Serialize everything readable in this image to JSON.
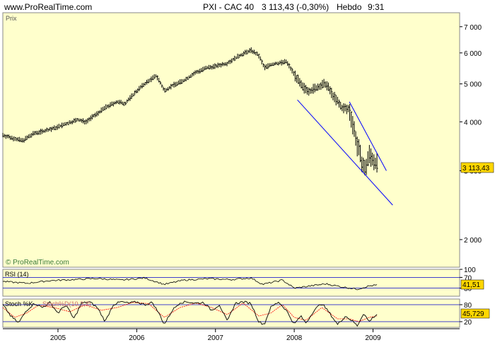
{
  "header": {
    "site": "www.ProRealTime.com",
    "instrument": "PXI - CAC 40",
    "quote": "3 113,43 (-0,30%)",
    "period": "Hebdo",
    "time": "9:31"
  },
  "watermark": "© ProRealTime.com",
  "chart_data": [
    {
      "type": "ohlc",
      "title": "Prix",
      "scale": "log",
      "ylim": [
        1700,
        7600
      ],
      "y_ticks": [
        "7 000",
        "6 000",
        "5 000",
        "4 000",
        "3 000",
        "2 000"
      ],
      "y_tick_values": [
        7000,
        6000,
        5000,
        4000,
        3000,
        2000
      ],
      "last_value_label": "3 113,43",
      "last_value": 3113.43,
      "x_ticks": [
        "2005",
        "2006",
        "2007",
        "2008",
        "2009"
      ],
      "x_tick_values": [
        2005,
        2006,
        2007,
        2008,
        2009
      ],
      "xlim": [
        2004.3,
        2010.1
      ],
      "series_points": [
        [
          2004.3,
          3700
        ],
        [
          2004.45,
          3620
        ],
        [
          2004.55,
          3580
        ],
        [
          2004.7,
          3740
        ],
        [
          2004.8,
          3780
        ],
        [
          2004.95,
          3850
        ],
        [
          2005.1,
          3950
        ],
        [
          2005.25,
          4050
        ],
        [
          2005.35,
          4000
        ],
        [
          2005.5,
          4200
        ],
        [
          2005.6,
          4350
        ],
        [
          2005.75,
          4500
        ],
        [
          2005.85,
          4450
        ],
        [
          2006.0,
          4800
        ],
        [
          2006.1,
          5000
        ],
        [
          2006.25,
          5250
        ],
        [
          2006.35,
          4800
        ],
        [
          2006.45,
          4950
        ],
        [
          2006.6,
          5100
        ],
        [
          2006.75,
          5350
        ],
        [
          2006.9,
          5500
        ],
        [
          2007.0,
          5550
        ],
        [
          2007.15,
          5650
        ],
        [
          2007.3,
          5900
        ],
        [
          2007.45,
          6100
        ],
        [
          2007.55,
          5900
        ],
        [
          2007.62,
          5500
        ],
        [
          2007.7,
          5600
        ],
        [
          2007.8,
          5650
        ],
        [
          2007.9,
          5700
        ],
        [
          2008.0,
          5300
        ],
        [
          2008.1,
          4900
        ],
        [
          2008.2,
          4800
        ],
        [
          2008.3,
          4900
        ],
        [
          2008.4,
          5000
        ],
        [
          2008.5,
          4650
        ],
        [
          2008.6,
          4350
        ],
        [
          2008.7,
          4300
        ],
        [
          2008.75,
          3900
        ],
        [
          2008.8,
          3500
        ],
        [
          2008.85,
          3200
        ],
        [
          2008.9,
          3000
        ],
        [
          2008.95,
          3300
        ],
        [
          2009.0,
          3200
        ],
        [
          2009.05,
          3113
        ]
      ],
      "trendlines": [
        {
          "from": [
            2008.04,
            4550
          ],
          "to": [
            2009.25,
            2450
          ]
        },
        {
          "from": [
            2008.7,
            4500
          ],
          "to": [
            2009.17,
            3000
          ]
        }
      ]
    },
    {
      "type": "line",
      "title": "RSI (14)",
      "ylim": [
        0,
        100
      ],
      "y_ticks": [
        "100",
        "70",
        "30"
      ],
      "y_tick_values": [
        100,
        70,
        30
      ],
      "last_value_label": "41,51",
      "last_value": 41.51,
      "series_points": [
        [
          2004.3,
          55
        ],
        [
          2004.6,
          48
        ],
        [
          2004.9,
          58
        ],
        [
          2005.2,
          62
        ],
        [
          2005.5,
          66
        ],
        [
          2005.8,
          60
        ],
        [
          2006.1,
          68
        ],
        [
          2006.35,
          44
        ],
        [
          2006.6,
          60
        ],
        [
          2006.9,
          65
        ],
        [
          2007.2,
          62
        ],
        [
          2007.45,
          68
        ],
        [
          2007.6,
          44
        ],
        [
          2007.85,
          60
        ],
        [
          2008.0,
          30
        ],
        [
          2008.2,
          38
        ],
        [
          2008.4,
          46
        ],
        [
          2008.6,
          35
        ],
        [
          2008.8,
          26
        ],
        [
          2008.95,
          38
        ],
        [
          2009.05,
          41.5
        ]
      ]
    },
    {
      "type": "line",
      "title": "Stoch %K",
      "legend_overlay": "Stoch%D(10,3,3)",
      "ylim": [
        0,
        100
      ],
      "y_ticks": [
        "80",
        "20"
      ],
      "y_tick_values": [
        80,
        20
      ],
      "last_value_label": "45,729",
      "last_value": 45.729,
      "series_k": [
        [
          2004.3,
          80
        ],
        [
          2004.4,
          40
        ],
        [
          2004.5,
          15
        ],
        [
          2004.6,
          60
        ],
        [
          2004.7,
          85
        ],
        [
          2004.8,
          70
        ],
        [
          2004.9,
          88
        ],
        [
          2005.0,
          50
        ],
        [
          2005.1,
          80
        ],
        [
          2005.2,
          30
        ],
        [
          2005.3,
          85
        ],
        [
          2005.4,
          90
        ],
        [
          2005.5,
          70
        ],
        [
          2005.6,
          20
        ],
        [
          2005.7,
          80
        ],
        [
          2005.8,
          90
        ],
        [
          2005.9,
          85
        ],
        [
          2006.0,
          90
        ],
        [
          2006.1,
          80
        ],
        [
          2006.2,
          88
        ],
        [
          2006.3,
          40
        ],
        [
          2006.35,
          10
        ],
        [
          2006.45,
          60
        ],
        [
          2006.55,
          88
        ],
        [
          2006.65,
          90
        ],
        [
          2006.75,
          85
        ],
        [
          2006.85,
          88
        ],
        [
          2006.95,
          60
        ],
        [
          2007.05,
          80
        ],
        [
          2007.15,
          20
        ],
        [
          2007.25,
          85
        ],
        [
          2007.35,
          90
        ],
        [
          2007.45,
          85
        ],
        [
          2007.55,
          20
        ],
        [
          2007.62,
          10
        ],
        [
          2007.7,
          70
        ],
        [
          2007.8,
          90
        ],
        [
          2007.9,
          60
        ],
        [
          2008.0,
          10
        ],
        [
          2008.08,
          40
        ],
        [
          2008.15,
          15
        ],
        [
          2008.25,
          60
        ],
        [
          2008.35,
          85
        ],
        [
          2008.45,
          50
        ],
        [
          2008.55,
          10
        ],
        [
          2008.65,
          40
        ],
        [
          2008.75,
          20
        ],
        [
          2008.8,
          5
        ],
        [
          2008.88,
          50
        ],
        [
          2008.95,
          20
        ],
        [
          2009.0,
          35
        ],
        [
          2009.05,
          45.7
        ]
      ],
      "series_d": [
        [
          2004.3,
          70
        ],
        [
          2004.45,
          35
        ],
        [
          2004.6,
          50
        ],
        [
          2004.75,
          78
        ],
        [
          2004.95,
          70
        ],
        [
          2005.15,
          55
        ],
        [
          2005.35,
          80
        ],
        [
          2005.55,
          60
        ],
        [
          2005.75,
          70
        ],
        [
          2005.95,
          88
        ],
        [
          2006.15,
          84
        ],
        [
          2006.35,
          35
        ],
        [
          2006.55,
          70
        ],
        [
          2006.75,
          86
        ],
        [
          2006.95,
          70
        ],
        [
          2007.15,
          45
        ],
        [
          2007.35,
          86
        ],
        [
          2007.55,
          40
        ],
        [
          2007.7,
          50
        ],
        [
          2007.85,
          80
        ],
        [
          2008.0,
          35
        ],
        [
          2008.15,
          25
        ],
        [
          2008.35,
          70
        ],
        [
          2008.55,
          30
        ],
        [
          2008.7,
          30
        ],
        [
          2008.82,
          20
        ],
        [
          2008.95,
          35
        ],
        [
          2009.05,
          40
        ]
      ]
    }
  ],
  "colors": {
    "panel_bg": "#FFFFCC",
    "price_bars": "#000000",
    "trendline": "#0000FF",
    "rsi_line": "#000000",
    "stoch_k": "#000000",
    "stoch_d": "#FF0000",
    "level_line": "#0000CC",
    "value_box": "#FFD700"
  }
}
